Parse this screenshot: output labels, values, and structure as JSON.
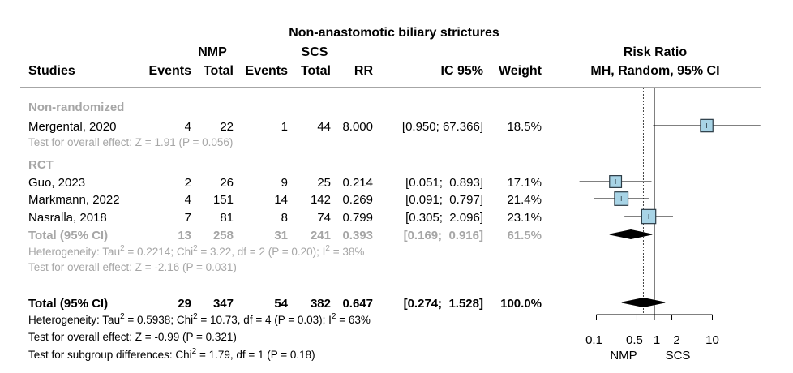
{
  "chart_data": {
    "type": "forest",
    "title": "Non-anastomotic biliary strictures",
    "headers": {
      "studies": "Studies",
      "nmp_group": "NMP",
      "scs_group": "SCS",
      "events": "Events",
      "total": "Total",
      "rr": "RR",
      "ci": "IC 95%",
      "weight": "Weight",
      "plot_title_line1": "Risk Ratio",
      "plot_title_line2": "MH, Random, 95% CI"
    },
    "subgroups": [
      {
        "label": "Non-randomized",
        "studies": [
          {
            "name": "Mergental, 2020",
            "nmp_events": "4",
            "nmp_total": "22",
            "scs_events": "1",
            "scs_total": "44",
            "rr": "8.000",
            "ci_text": "[0.950; 67.366]",
            "weight": "18.5%",
            "rr_value": 8.0,
            "lower": 0.95,
            "upper": 67.366,
            "weight_value": 18.5
          }
        ],
        "total": null,
        "heterogeneity": null,
        "overall_effect": "Test for overall effect: Z = 1.91 (P = 0.056)"
      },
      {
        "label": "RCT",
        "studies": [
          {
            "name": "Guo, 2023",
            "nmp_events": "2",
            "nmp_total": "26",
            "scs_events": "9",
            "scs_total": "25",
            "rr": "0.214",
            "ci_text": "[0.051;  0.893]",
            "weight": "17.1%",
            "rr_value": 0.214,
            "lower": 0.051,
            "upper": 0.893,
            "weight_value": 17.1
          },
          {
            "name": "Markmann, 2022",
            "nmp_events": "4",
            "nmp_total": "151",
            "scs_events": "14",
            "scs_total": "142",
            "rr": "0.269",
            "ci_text": "[0.091;  0.797]",
            "weight": "21.4%",
            "rr_value": 0.269,
            "lower": 0.091,
            "upper": 0.797,
            "weight_value": 21.4
          },
          {
            "name": "Nasralla, 2018",
            "nmp_events": "7",
            "nmp_total": "81",
            "scs_events": "8",
            "scs_total": "74",
            "rr": "0.799",
            "ci_text": "[0.305;  2.096]",
            "weight": "23.1%",
            "rr_value": 0.799,
            "lower": 0.305,
            "upper": 2.096,
            "weight_value": 23.1
          }
        ],
        "total": {
          "label": "Total (95% CI)",
          "nmp_events": "13",
          "nmp_total": "258",
          "scs_events": "31",
          "scs_total": "241",
          "rr": "0.393",
          "ci_text": "[0.169;  0.916]",
          "weight": "61.5%",
          "rr_value": 0.393,
          "lower": 0.169,
          "upper": 0.916
        },
        "heterogeneity": {
          "prefix": "Heterogeneity: Tau",
          "a": " = 0.2214; Chi",
          "b": " = 3.22, df = 2 (P = 0.20); I",
          "c": " = 38%"
        },
        "overall_effect": "Test for overall effect: Z = -2.16 (P = 0.031)"
      }
    ],
    "overall": {
      "label": "Total (95% CI)",
      "nmp_events": "29",
      "nmp_total": "347",
      "scs_events": "54",
      "scs_total": "382",
      "rr": "0.647",
      "ci_text": "[0.274;  1.528]",
      "weight": "100.0%",
      "rr_value": 0.647,
      "lower": 0.274,
      "upper": 1.528,
      "heterogeneity": {
        "prefix": "Heterogeneity: Tau",
        "a": " = 0.5938; Chi",
        "b": " = 10.73, df = 4 (P = 0.03); I",
        "c": " = 63%"
      },
      "overall_effect": "Test for overall effect: Z = -0.99 (P = 0.321)",
      "subgroup_diff": {
        "prefix": "Test for subgroup differences: Chi",
        "b": " = 1.79, df = 1 (P = 0.18)"
      }
    },
    "x_axis": {
      "scale": "log",
      "ticks": [
        0.1,
        0.5,
        1,
        2,
        10
      ],
      "tick_labels": [
        "0.1",
        "0.5",
        "1",
        "2",
        "10"
      ],
      "favours_left": "NMP",
      "favours_right": "SCS",
      "reference": 1
    },
    "colors": {
      "box_fill": "#a8d4e6",
      "box_stroke": "#2a3a44",
      "grey_text": "#a6a6a6",
      "diamond": "#000000"
    }
  }
}
